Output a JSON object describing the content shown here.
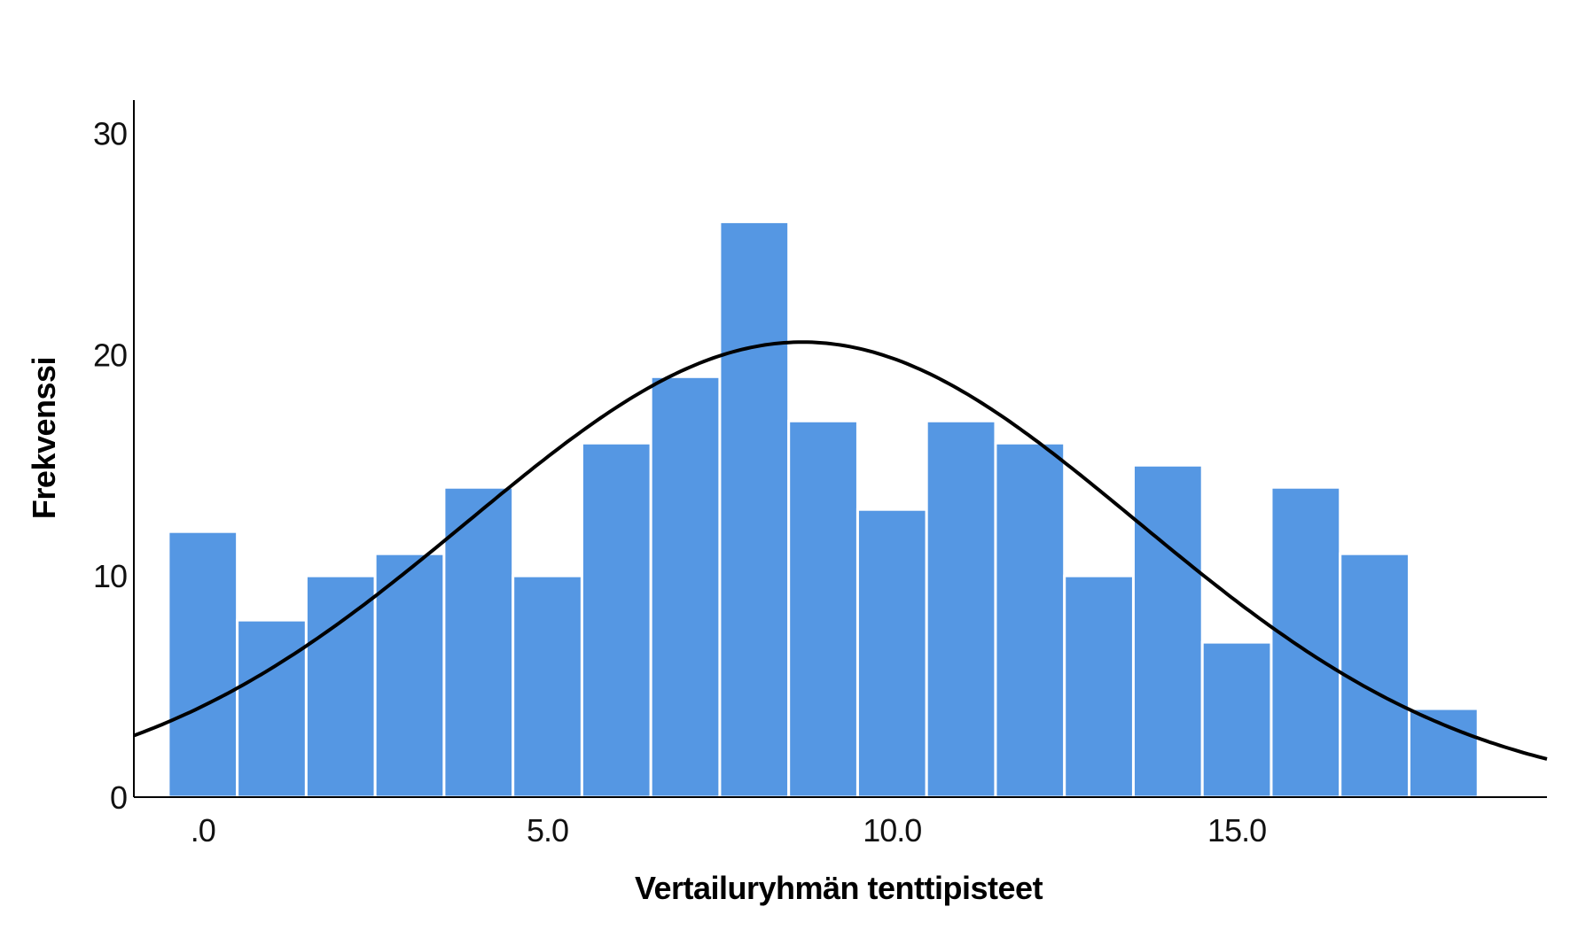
{
  "chart_data": {
    "type": "bar",
    "subtype": "histogram-with-normal-curve",
    "xlabel": "Vertailuryhmän tenttipisteet",
    "ylabel": "Frekvenssi",
    "bin_width": 1.0,
    "bins": [
      {
        "x": 0,
        "count": 12
      },
      {
        "x": 1,
        "count": 8
      },
      {
        "x": 2,
        "count": 10
      },
      {
        "x": 3,
        "count": 11
      },
      {
        "x": 4,
        "count": 14
      },
      {
        "x": 5,
        "count": 10
      },
      {
        "x": 6,
        "count": 16
      },
      {
        "x": 7,
        "count": 19
      },
      {
        "x": 8,
        "count": 26
      },
      {
        "x": 9,
        "count": 17
      },
      {
        "x": 10,
        "count": 13
      },
      {
        "x": 11,
        "count": 17
      },
      {
        "x": 12,
        "count": 16
      },
      {
        "x": 13,
        "count": 10
      },
      {
        "x": 14,
        "count": 15
      },
      {
        "x": 15,
        "count": 7
      },
      {
        "x": 16,
        "count": 14
      },
      {
        "x": 17,
        "count": 11
      },
      {
        "x": 18,
        "count": 4
      }
    ],
    "normal_curve": {
      "mean": 8.7,
      "sd": 4.85,
      "n": 250
    },
    "xlim": [
      -1.0,
      19.5
    ],
    "ylim": [
      0,
      31.5
    ],
    "x_ticks": [
      {
        "value": 0,
        "label": ".0"
      },
      {
        "value": 5,
        "label": "5.0"
      },
      {
        "value": 10,
        "label": "10.0"
      },
      {
        "value": 15,
        "label": "15.0"
      }
    ],
    "y_ticks": [
      {
        "value": 0,
        "label": "0"
      },
      {
        "value": 10,
        "label": "10"
      },
      {
        "value": 20,
        "label": "20"
      },
      {
        "value": 30,
        "label": "30"
      }
    ],
    "grid": false,
    "colors": {
      "bar": "#5597e3",
      "bar_edge": "#ffffff",
      "curve": "#000000",
      "axis": "#000000"
    }
  }
}
